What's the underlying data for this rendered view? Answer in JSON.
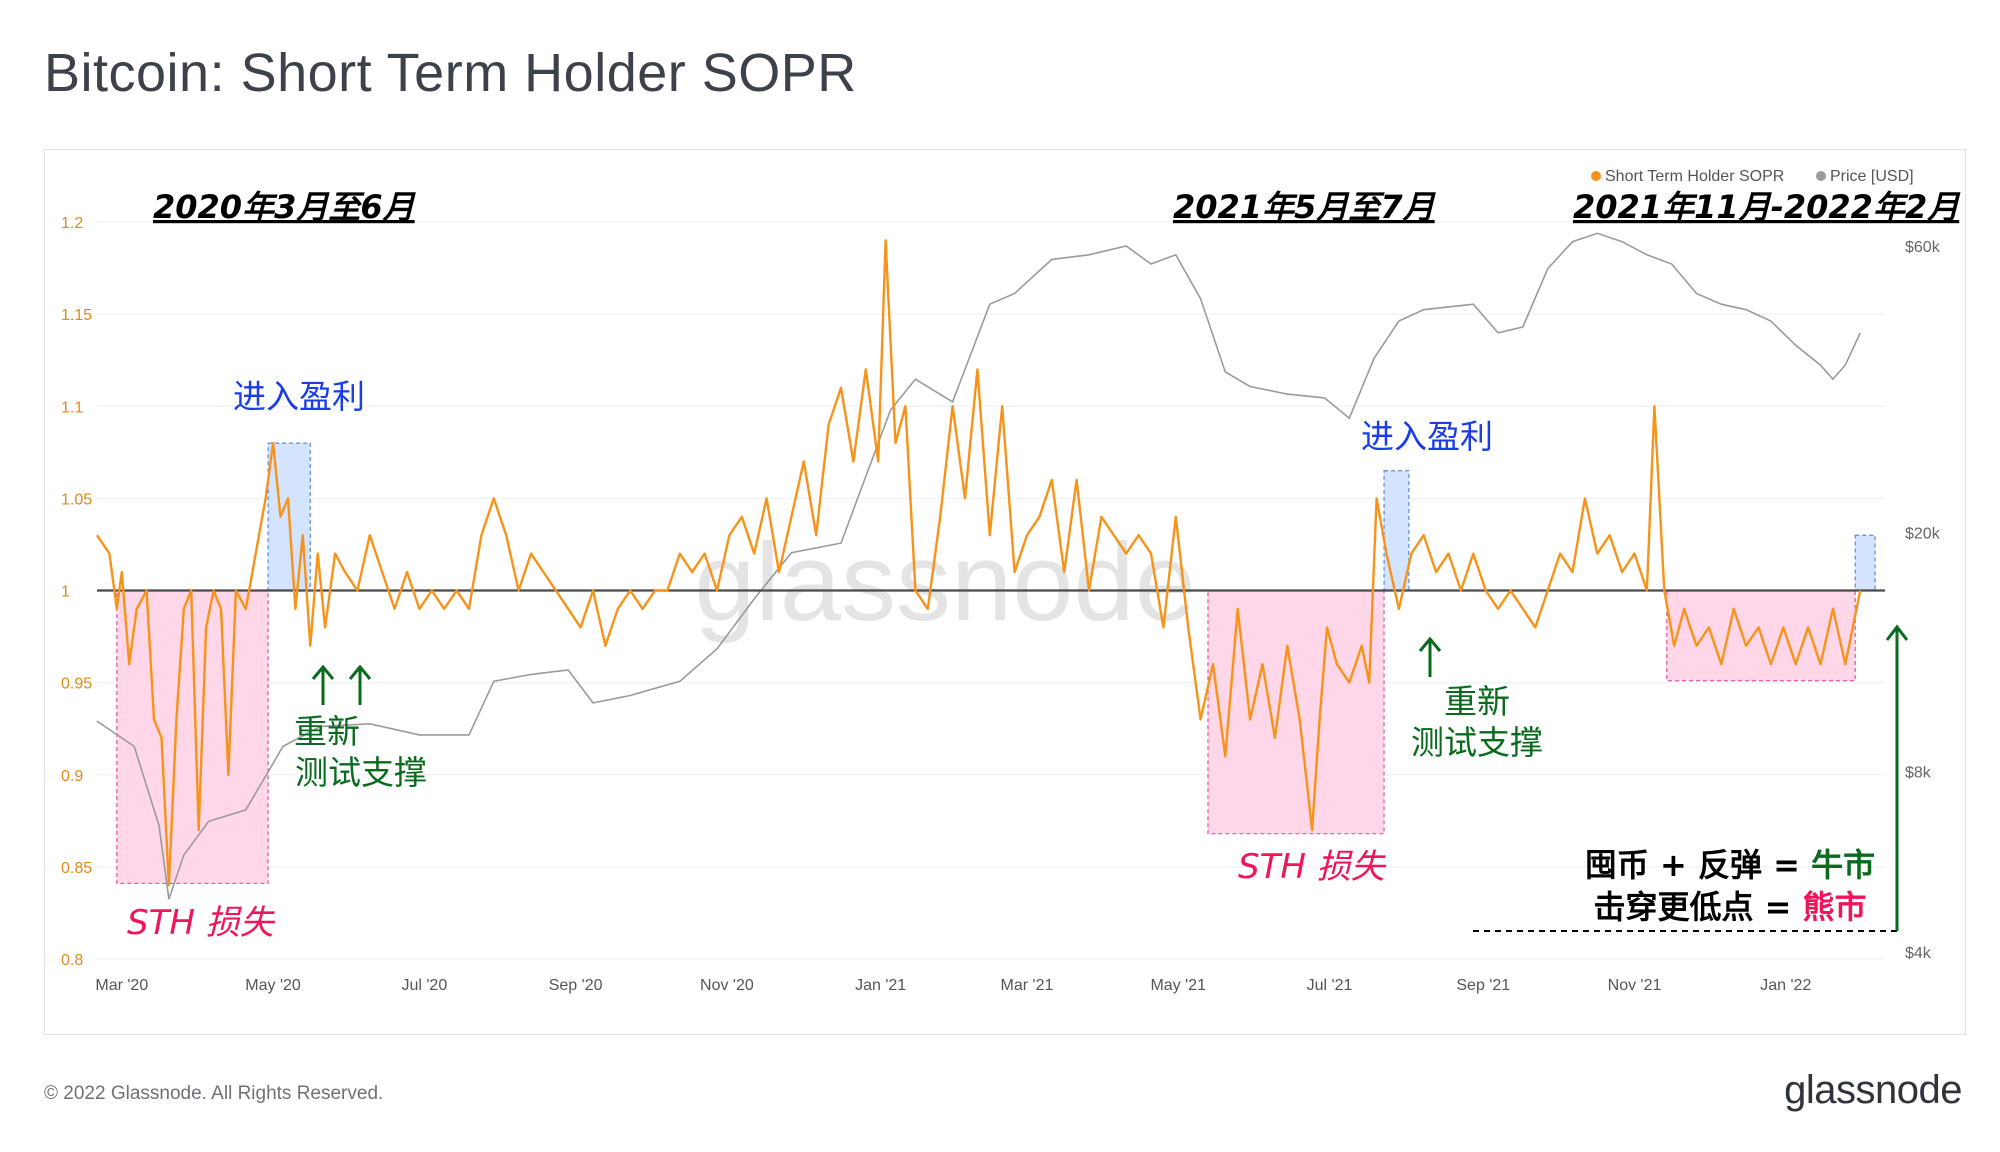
{
  "title": "Bitcoin: Short Term Holder SOPR",
  "footer": {
    "copyright": "© 2022 Glassnode. All Rights Reserved.",
    "logo_text": "glassnode"
  },
  "watermark": "glassnode",
  "colors": {
    "sopr": "#f7931a",
    "price": "#9a9a9a",
    "loss_fill": "#ffd3e6",
    "loss_border": "#e0579a",
    "profit_fill": "#cfe1ff",
    "profit_border": "#5b8ad8",
    "blue_text": "#1a3de8",
    "green_text": "#0a6b1f",
    "pink_text": "#f0145a",
    "baseline": "#4a4a4a"
  },
  "chart_data": {
    "type": "line",
    "title": "Bitcoin: Short Term Holder SOPR",
    "legend": {
      "placement": "top-right",
      "items": [
        "Short Term Holder SOPR",
        "Price [USD]"
      ]
    },
    "x": {
      "start": "2020-02-20",
      "end": "2022-02-15",
      "tick_labels": [
        "Mar '20",
        "May '20",
        "Jul '20",
        "Sep '20",
        "Nov '20",
        "Jan '21",
        "Mar '21",
        "May '21",
        "Jul '21",
        "Sep '21",
        "Nov '21",
        "Jan '22"
      ],
      "tick_days": [
        10,
        71,
        132,
        193,
        254,
        316,
        375,
        436,
        497,
        559,
        620,
        681
      ]
    },
    "y_left": {
      "label": "Short Term Holder SOPR",
      "range": [
        0.8,
        1.2
      ],
      "ticks": [
        0.8,
        0.85,
        0.9,
        0.95,
        1,
        1.05,
        1.1,
        1.15,
        1.2
      ],
      "tick_labels": [
        "0.8",
        "0.85",
        "0.9",
        "0.95",
        "1",
        "1.05",
        "1.1",
        "1.15",
        "1.2"
      ]
    },
    "y_right": {
      "label": "Price [USD]",
      "scale": "log",
      "ticks": [
        4000,
        8000,
        20000,
        60000
      ],
      "tick_labels": [
        "$4k",
        "$8k",
        "$20k",
        "$60k"
      ]
    },
    "baseline": 1,
    "series": [
      {
        "name": "Short Term Holder SOPR",
        "axis": "left",
        "points": [
          [
            0,
            1.03
          ],
          [
            5,
            1.02
          ],
          [
            8,
            0.99
          ],
          [
            10,
            1.01
          ],
          [
            13,
            0.96
          ],
          [
            16,
            0.99
          ],
          [
            20,
            1.0
          ],
          [
            23,
            0.93
          ],
          [
            26,
            0.92
          ],
          [
            29,
            0.84
          ],
          [
            32,
            0.93
          ],
          [
            35,
            0.99
          ],
          [
            38,
            1.0
          ],
          [
            41,
            0.87
          ],
          [
            44,
            0.98
          ],
          [
            47,
            1.0
          ],
          [
            50,
            0.99
          ],
          [
            53,
            0.9
          ],
          [
            56,
            1.0
          ],
          [
            60,
            0.99
          ],
          [
            64,
            1.02
          ],
          [
            68,
            1.05
          ],
          [
            71,
            1.08
          ],
          [
            74,
            1.04
          ],
          [
            77,
            1.05
          ],
          [
            80,
            0.99
          ],
          [
            83,
            1.03
          ],
          [
            86,
            0.97
          ],
          [
            89,
            1.02
          ],
          [
            92,
            0.98
          ],
          [
            96,
            1.02
          ],
          [
            100,
            1.01
          ],
          [
            105,
            1.0
          ],
          [
            110,
            1.03
          ],
          [
            115,
            1.01
          ],
          [
            120,
            0.99
          ],
          [
            125,
            1.01
          ],
          [
            130,
            0.99
          ],
          [
            135,
            1.0
          ],
          [
            140,
            0.99
          ],
          [
            145,
            1.0
          ],
          [
            150,
            0.99
          ],
          [
            155,
            1.03
          ],
          [
            160,
            1.05
          ],
          [
            165,
            1.03
          ],
          [
            170,
            1.0
          ],
          [
            175,
            1.02
          ],
          [
            180,
            1.01
          ],
          [
            185,
            1.0
          ],
          [
            190,
            0.99
          ],
          [
            195,
            0.98
          ],
          [
            200,
            1.0
          ],
          [
            205,
            0.97
          ],
          [
            210,
            0.99
          ],
          [
            215,
            1.0
          ],
          [
            220,
            0.99
          ],
          [
            225,
            1.0
          ],
          [
            230,
            1.0
          ],
          [
            235,
            1.02
          ],
          [
            240,
            1.01
          ],
          [
            245,
            1.02
          ],
          [
            250,
            1.0
          ],
          [
            255,
            1.03
          ],
          [
            260,
            1.04
          ],
          [
            265,
            1.02
          ],
          [
            270,
            1.05
          ],
          [
            275,
            1.01
          ],
          [
            280,
            1.04
          ],
          [
            285,
            1.07
          ],
          [
            290,
            1.03
          ],
          [
            295,
            1.09
          ],
          [
            300,
            1.11
          ],
          [
            305,
            1.07
          ],
          [
            310,
            1.12
          ],
          [
            315,
            1.07
          ],
          [
            318,
            1.19
          ],
          [
            322,
            1.08
          ],
          [
            326,
            1.1
          ],
          [
            330,
            1.0
          ],
          [
            335,
            0.99
          ],
          [
            340,
            1.04
          ],
          [
            345,
            1.1
          ],
          [
            350,
            1.05
          ],
          [
            355,
            1.12
          ],
          [
            360,
            1.03
          ],
          [
            365,
            1.1
          ],
          [
            370,
            1.01
          ],
          [
            375,
            1.03
          ],
          [
            380,
            1.04
          ],
          [
            385,
            1.06
          ],
          [
            390,
            1.01
          ],
          [
            395,
            1.06
          ],
          [
            400,
            1.0
          ],
          [
            405,
            1.04
          ],
          [
            410,
            1.03
          ],
          [
            415,
            1.02
          ],
          [
            420,
            1.03
          ],
          [
            425,
            1.02
          ],
          [
            430,
            0.98
          ],
          [
            435,
            1.04
          ],
          [
            440,
            0.98
          ],
          [
            445,
            0.93
          ],
          [
            450,
            0.96
          ],
          [
            455,
            0.91
          ],
          [
            460,
            0.99
          ],
          [
            465,
            0.93
          ],
          [
            470,
            0.96
          ],
          [
            475,
            0.92
          ],
          [
            480,
            0.97
          ],
          [
            485,
            0.93
          ],
          [
            490,
            0.87
          ],
          [
            493,
            0.93
          ],
          [
            496,
            0.98
          ],
          [
            500,
            0.96
          ],
          [
            505,
            0.95
          ],
          [
            510,
            0.97
          ],
          [
            513,
            0.95
          ],
          [
            516,
            1.05
          ],
          [
            520,
            1.02
          ],
          [
            525,
            0.99
          ],
          [
            530,
            1.02
          ],
          [
            535,
            1.03
          ],
          [
            540,
            1.01
          ],
          [
            545,
            1.02
          ],
          [
            550,
            1.0
          ],
          [
            555,
            1.02
          ],
          [
            560,
            1.0
          ],
          [
            565,
            0.99
          ],
          [
            570,
            1.0
          ],
          [
            575,
            0.99
          ],
          [
            580,
            0.98
          ],
          [
            585,
            1.0
          ],
          [
            590,
            1.02
          ],
          [
            595,
            1.01
          ],
          [
            600,
            1.05
          ],
          [
            605,
            1.02
          ],
          [
            610,
            1.03
          ],
          [
            615,
            1.01
          ],
          [
            620,
            1.02
          ],
          [
            625,
            1.0
          ],
          [
            628,
            1.1
          ],
          [
            632,
            1.0
          ],
          [
            636,
            0.97
          ],
          [
            640,
            0.99
          ],
          [
            645,
            0.97
          ],
          [
            650,
            0.98
          ],
          [
            655,
            0.96
          ],
          [
            660,
            0.99
          ],
          [
            665,
            0.97
          ],
          [
            670,
            0.98
          ],
          [
            675,
            0.96
          ],
          [
            680,
            0.98
          ],
          [
            685,
            0.96
          ],
          [
            690,
            0.98
          ],
          [
            695,
            0.96
          ],
          [
            700,
            0.99
          ],
          [
            705,
            0.96
          ],
          [
            708,
            0.98
          ],
          [
            711,
            1.0
          ]
        ]
      },
      {
        "name": "Price [USD]",
        "axis": "right",
        "points": [
          [
            0,
            9700
          ],
          [
            15,
            8800
          ],
          [
            25,
            6500
          ],
          [
            29,
            4900
          ],
          [
            35,
            5800
          ],
          [
            45,
            6600
          ],
          [
            60,
            6900
          ],
          [
            75,
            8800
          ],
          [
            90,
            9500
          ],
          [
            110,
            9600
          ],
          [
            130,
            9200
          ],
          [
            150,
            9200
          ],
          [
            160,
            11300
          ],
          [
            175,
            11600
          ],
          [
            190,
            11800
          ],
          [
            200,
            10400
          ],
          [
            215,
            10700
          ],
          [
            235,
            11300
          ],
          [
            250,
            12800
          ],
          [
            265,
            15500
          ],
          [
            280,
            18500
          ],
          [
            300,
            19200
          ],
          [
            320,
            32000
          ],
          [
            330,
            36000
          ],
          [
            345,
            33000
          ],
          [
            360,
            48000
          ],
          [
            370,
            50000
          ],
          [
            385,
            57000
          ],
          [
            400,
            58000
          ],
          [
            415,
            60000
          ],
          [
            425,
            56000
          ],
          [
            435,
            58000
          ],
          [
            445,
            49000
          ],
          [
            455,
            37000
          ],
          [
            465,
            35000
          ],
          [
            480,
            34000
          ],
          [
            495,
            33500
          ],
          [
            505,
            31000
          ],
          [
            515,
            39000
          ],
          [
            525,
            45000
          ],
          [
            535,
            47000
          ],
          [
            545,
            47500
          ],
          [
            555,
            48000
          ],
          [
            565,
            43000
          ],
          [
            575,
            44000
          ],
          [
            585,
            55000
          ],
          [
            595,
            61000
          ],
          [
            605,
            63000
          ],
          [
            615,
            61000
          ],
          [
            625,
            58000
          ],
          [
            635,
            56000
          ],
          [
            645,
            50000
          ],
          [
            655,
            48000
          ],
          [
            665,
            47000
          ],
          [
            675,
            45000
          ],
          [
            685,
            41000
          ],
          [
            695,
            38000
          ],
          [
            700,
            36000
          ],
          [
            705,
            38000
          ],
          [
            711,
            43000
          ]
        ]
      }
    ],
    "regions": [
      {
        "kind": "loss",
        "x0": 8,
        "x1": 69,
        "y0": 0.841,
        "y1": 1.0
      },
      {
        "kind": "profit",
        "x0": 69,
        "x1": 86,
        "y0": 1.0,
        "y1": 1.08
      },
      {
        "kind": "loss",
        "x0": 448,
        "x1": 519,
        "y0": 0.868,
        "y1": 1.0
      },
      {
        "kind": "profit",
        "x0": 519,
        "x1": 529,
        "y0": 1.0,
        "y1": 1.065
      },
      {
        "kind": "loss",
        "x0": 633,
        "x1": 709,
        "y0": 0.951,
        "y1": 1.0
      },
      {
        "kind": "profit",
        "x0": 709,
        "x1": 717,
        "y0": 1.0,
        "y1": 1.03
      }
    ],
    "annotations": {
      "periods": [
        "2020年3月至6月",
        "2021年5月至7月",
        "2021年11月-2022年2月"
      ],
      "enter_profit": [
        "进入盈利",
        "进入盈利"
      ],
      "sth_loss": [
        "STH 损失",
        "STH 损失"
      ],
      "retest_support": [
        [
          "重新",
          "测试支撑"
        ],
        [
          "重新",
          "测试支撑"
        ]
      ],
      "conclusion_line1": [
        "囤币 + 反弹 = ",
        "牛市"
      ],
      "conclusion_line2": [
        "击穿更低点 = ",
        "熊市"
      ]
    }
  }
}
